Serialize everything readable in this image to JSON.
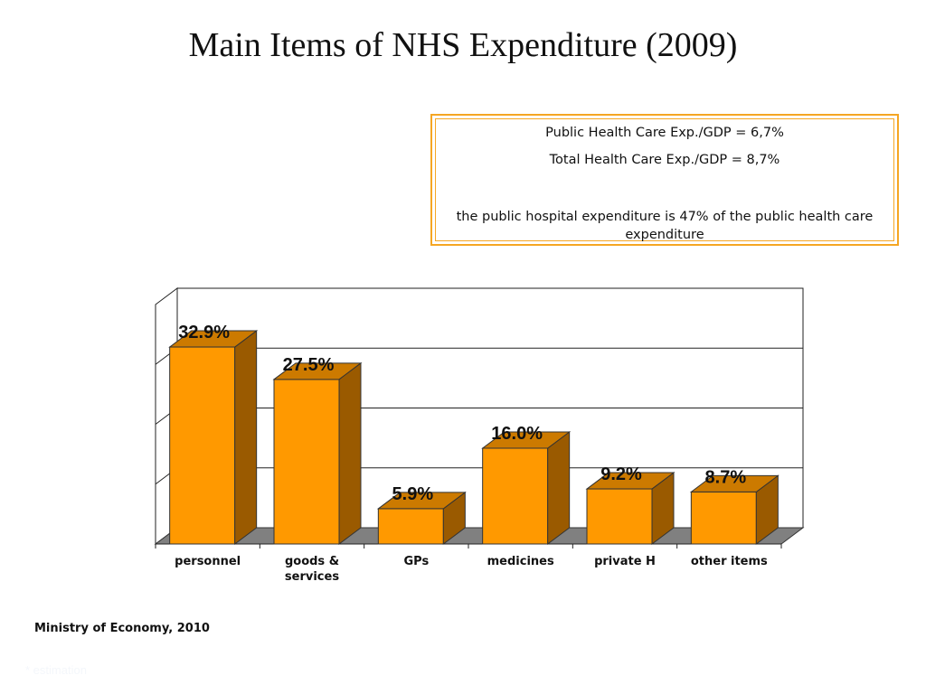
{
  "title": "Main Items of NHS Expenditure (2009)",
  "infobox": {
    "line1": "Public Health Care Exp./GDP = 6,7%",
    "line2": "Total Health Care Exp./GDP = 8,7%",
    "line3": "the public hospital expenditure is 47% of the public health care expenditure"
  },
  "source": "Ministry of Economy, 2010",
  "footnote": "* estimation",
  "colors": {
    "bar_front": "#ff9900",
    "bar_side": "#9a5a00",
    "bar_top": "#cc7a00",
    "floor": "#808080",
    "box_border": "#f5a623"
  },
  "chart_data": {
    "type": "bar",
    "style": "3d",
    "categories": [
      "personnel",
      "goods  & services",
      "GPs",
      "medicines",
      "private H",
      "other items"
    ],
    "category_lines": [
      [
        "personnel"
      ],
      [
        "goods  &",
        "services"
      ],
      [
        "GPs"
      ],
      [
        "medicines"
      ],
      [
        "private H"
      ],
      [
        "other items"
      ]
    ],
    "values": [
      32.9,
      27.5,
      5.9,
      16.0,
      9.2,
      8.7
    ],
    "data_labels": [
      "32.9%",
      "27.5%",
      "5.9%",
      "16.0%",
      "9.2%",
      "8.7%"
    ],
    "ylim": [
      0,
      40
    ],
    "grid": true,
    "legend": "none"
  }
}
